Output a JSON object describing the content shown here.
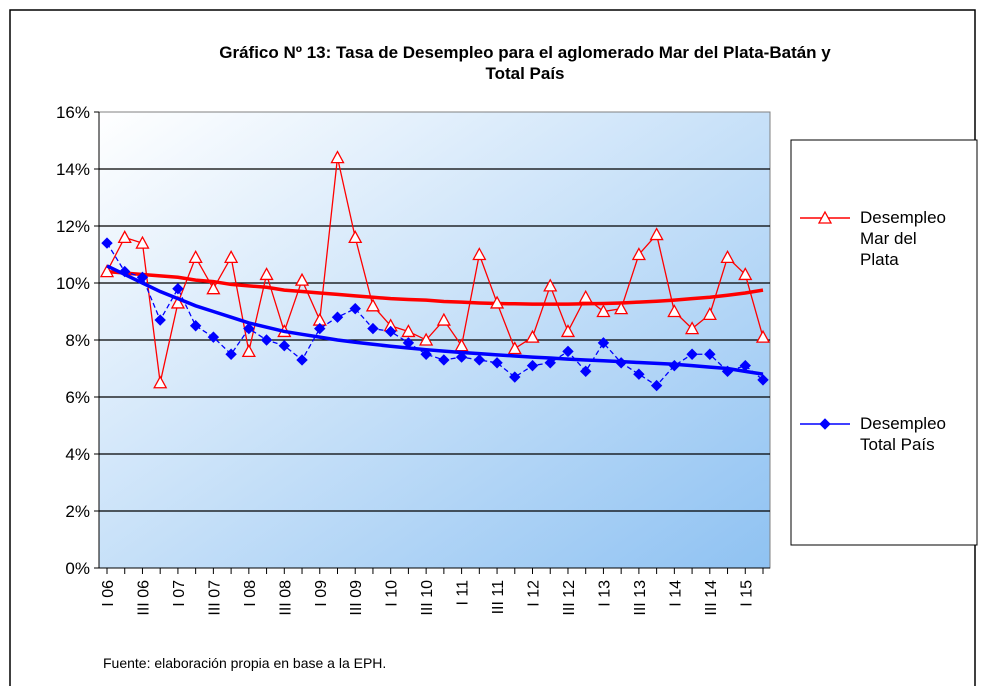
{
  "chart_data": {
    "type": "line",
    "title": "Gráfico Nº 13: Tasa de Desempleo para el aglomerado Mar del Plata-Batán y Total País",
    "footnote": "Fuente: elaboración propia en base a la EPH.",
    "categories": [
      "I 06",
      null,
      "III 06",
      null,
      "I 07",
      null,
      "III 07",
      null,
      "I 08",
      null,
      "III 08",
      null,
      "I 09",
      null,
      "III 09",
      null,
      "I 10",
      null,
      "III 10",
      null,
      "I 11",
      null,
      "III 11",
      null,
      "I 12",
      null,
      "III 12",
      null,
      "I 13",
      null,
      "III 13",
      null,
      "I 14",
      null,
      "III 14",
      null,
      "I 15",
      null
    ],
    "ylim": [
      0,
      16
    ],
    "yticks": [
      {
        "value": 0,
        "label": "0%"
      },
      {
        "value": 2,
        "label": "2%"
      },
      {
        "value": 4,
        "label": "4%"
      },
      {
        "value": 6,
        "label": "6%"
      },
      {
        "value": 8,
        "label": "8%"
      },
      {
        "value": 10,
        "label": "10%"
      },
      {
        "value": 12,
        "label": "12%"
      },
      {
        "value": 14,
        "label": "14%"
      },
      {
        "value": 16,
        "label": "16%"
      }
    ],
    "grid": true,
    "legend": "right",
    "series": [
      {
        "name": "Desempleo Mar del Plata",
        "color": "#ff0000",
        "marker": "triangle",
        "values": [
          10.4,
          11.6,
          11.4,
          6.5,
          9.3,
          10.9,
          9.8,
          10.9,
          7.6,
          10.3,
          8.3,
          10.1,
          8.7,
          14.4,
          11.6,
          9.2,
          8.5,
          8.3,
          8.0,
          8.7,
          7.8,
          11.0,
          9.3,
          7.7,
          8.1,
          9.9,
          8.3,
          9.5,
          9.0,
          9.1,
          11.0,
          11.7,
          9.0,
          8.4,
          8.9,
          10.9,
          10.3,
          8.1
        ],
        "trend": [
          10.4,
          10.35,
          10.3,
          10.25,
          10.2,
          10.1,
          10.05,
          9.95,
          9.9,
          9.85,
          9.75,
          9.7,
          9.65,
          9.6,
          9.55,
          9.5,
          9.45,
          9.42,
          9.4,
          9.35,
          9.33,
          9.3,
          9.28,
          9.27,
          9.26,
          9.26,
          9.26,
          9.27,
          9.28,
          9.3,
          9.33,
          9.36,
          9.4,
          9.45,
          9.5,
          9.57,
          9.65,
          9.75
        ]
      },
      {
        "name": "Desempleo Total País",
        "color": "#0000ff",
        "marker": "diamond",
        "values": [
          11.4,
          10.4,
          10.2,
          8.7,
          9.8,
          8.5,
          8.1,
          7.5,
          8.4,
          8.0,
          7.8,
          7.3,
          8.4,
          8.8,
          9.1,
          8.4,
          8.3,
          7.9,
          7.5,
          7.3,
          7.4,
          7.3,
          7.2,
          6.7,
          7.1,
          7.2,
          7.6,
          6.9,
          7.9,
          7.2,
          6.8,
          6.4,
          7.1,
          7.5,
          7.5,
          6.9,
          7.1,
          6.6
        ],
        "trend": [
          10.6,
          10.3,
          10.0,
          9.7,
          9.45,
          9.2,
          9.0,
          8.8,
          8.6,
          8.45,
          8.3,
          8.2,
          8.1,
          8.0,
          7.92,
          7.85,
          7.78,
          7.72,
          7.66,
          7.61,
          7.56,
          7.52,
          7.48,
          7.44,
          7.4,
          7.37,
          7.33,
          7.3,
          7.27,
          7.24,
          7.21,
          7.18,
          7.15,
          7.1,
          7.05,
          7.0,
          6.9,
          6.8
        ]
      }
    ]
  }
}
